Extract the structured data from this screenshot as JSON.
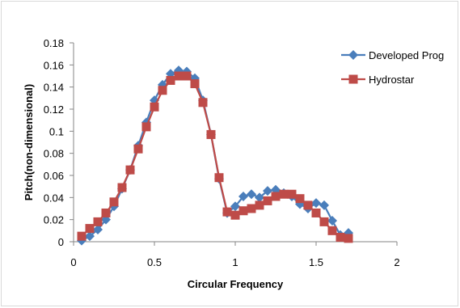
{
  "chart_data": {
    "type": "line",
    "title": "",
    "xlabel": "Circular Frequency",
    "ylabel": "Pitch(non-dimensional)",
    "xlim": [
      0,
      2
    ],
    "ylim": [
      0,
      0.18
    ],
    "xticks": [
      0,
      0.5,
      1,
      1.5,
      2
    ],
    "xtick_labels": [
      "0",
      "0.5",
      "1",
      "1.5",
      "2"
    ],
    "yticks": [
      0,
      0.02,
      0.04,
      0.06,
      0.08,
      0.1,
      0.12,
      0.14,
      0.16,
      0.18
    ],
    "ytick_labels": [
      "0",
      "0.02",
      "0.04",
      "0.06",
      "0.08",
      "0.1",
      "0.12",
      "0.14",
      "0.16",
      "0.18"
    ],
    "grid": false,
    "legend_position": "right",
    "series": [
      {
        "name": "Developed Prog",
        "color": "#4a7ebb",
        "marker": "diamond",
        "x": [
          0.05,
          0.1,
          0.15,
          0.2,
          0.25,
          0.3,
          0.35,
          0.4,
          0.45,
          0.5,
          0.55,
          0.6,
          0.65,
          0.7,
          0.75,
          0.8,
          0.85,
          0.9,
          0.95,
          1.0,
          1.05,
          1.1,
          1.15,
          1.2,
          1.25,
          1.3,
          1.35,
          1.4,
          1.45,
          1.5,
          1.55,
          1.6,
          1.65,
          1.7
        ],
        "values": [
          0.001,
          0.005,
          0.011,
          0.02,
          0.032,
          0.048,
          0.065,
          0.087,
          0.108,
          0.128,
          0.142,
          0.152,
          0.155,
          0.154,
          0.148,
          0.128,
          0.097,
          0.057,
          0.026,
          0.032,
          0.041,
          0.043,
          0.04,
          0.046,
          0.047,
          0.044,
          0.041,
          0.034,
          0.03,
          0.035,
          0.033,
          0.019,
          0.006,
          0.008
        ]
      },
      {
        "name": "Hydrostar",
        "color": "#be4b48",
        "marker": "square",
        "x": [
          0.05,
          0.1,
          0.15,
          0.2,
          0.25,
          0.3,
          0.35,
          0.4,
          0.45,
          0.5,
          0.55,
          0.6,
          0.65,
          0.7,
          0.75,
          0.8,
          0.85,
          0.9,
          0.95,
          1.0,
          1.05,
          1.1,
          1.15,
          1.2,
          1.25,
          1.3,
          1.35,
          1.4,
          1.45,
          1.5,
          1.55,
          1.6,
          1.65,
          1.7
        ],
        "values": [
          0.005,
          0.012,
          0.018,
          0.026,
          0.036,
          0.049,
          0.065,
          0.084,
          0.104,
          0.122,
          0.137,
          0.146,
          0.15,
          0.15,
          0.143,
          0.126,
          0.097,
          0.058,
          0.027,
          0.024,
          0.028,
          0.03,
          0.033,
          0.037,
          0.041,
          0.043,
          0.043,
          0.039,
          0.033,
          0.026,
          0.018,
          0.01,
          0.004,
          0.003
        ]
      }
    ]
  }
}
